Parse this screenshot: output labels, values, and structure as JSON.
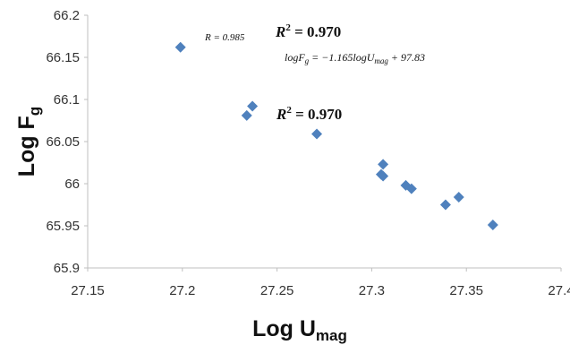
{
  "chart_data": {
    "type": "scatter",
    "title": "",
    "xlabel": "Log U",
    "xlabel_sub": "mag",
    "ylabel": "Log F",
    "ylabel_sub": "g",
    "xlim": [
      27.15,
      27.4
    ],
    "ylim": [
      65.9,
      66.2
    ],
    "xticks": [
      "27.15",
      "27.2",
      "27.25",
      "27.3",
      "27.35",
      "27.4"
    ],
    "yticks": [
      "65.9",
      "65.95",
      "66",
      "66.05",
      "66.1",
      "66.15",
      "66.2"
    ],
    "grid": false,
    "marker_color": "#4f81bd",
    "points": [
      {
        "x": 27.199,
        "y": 66.162
      },
      {
        "x": 27.234,
        "y": 66.081
      },
      {
        "x": 27.237,
        "y": 66.092
      },
      {
        "x": 27.271,
        "y": 66.059
      },
      {
        "x": 27.305,
        "y": 66.011
      },
      {
        "x": 27.306,
        "y": 66.009
      },
      {
        "x": 27.306,
        "y": 66.023
      },
      {
        "x": 27.318,
        "y": 65.998
      },
      {
        "x": 27.321,
        "y": 65.994
      },
      {
        "x": 27.339,
        "y": 65.975
      },
      {
        "x": 27.346,
        "y": 65.984
      },
      {
        "x": 27.364,
        "y": 65.951
      }
    ],
    "annotations": {
      "r_label": "R = 0.985",
      "r2_label": "R",
      "r2_sup": "2",
      "r2_value": " = 0.970",
      "equation_lhs": "logF",
      "equation_lhs_sub": "g",
      "equation_mid": " = −1.165logU",
      "equation_mid_sub": "mag",
      "equation_rhs": " + 97.83"
    }
  }
}
